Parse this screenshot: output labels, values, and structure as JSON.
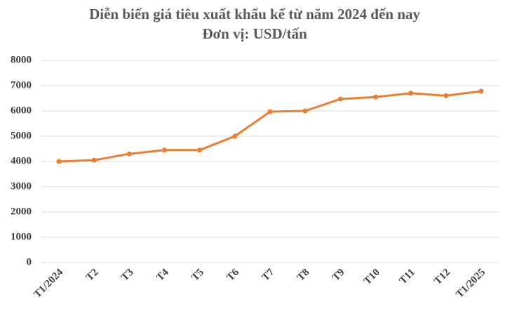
{
  "chart_data": {
    "type": "line",
    "title": "Diễn biến giá tiêu xuất khẩu kể từ năm 2024 đến nay",
    "subtitle": "Đơn vị: USD/tấn",
    "categories": [
      "T1/2024",
      "T2",
      "T3",
      "T4",
      "T5",
      "T6",
      "T7",
      "T8",
      "T9",
      "T10",
      "T11",
      "T12",
      "T1/2025"
    ],
    "values": [
      4000,
      4050,
      4300,
      4450,
      4450,
      5000,
      5970,
      6000,
      6470,
      6550,
      6700,
      6600,
      6780
    ],
    "color": "#ed7d31",
    "ylim": [
      0,
      8000
    ],
    "yticks": [
      0,
      1000,
      2000,
      3000,
      4000,
      5000,
      6000,
      7000,
      8000
    ],
    "grid": true
  }
}
